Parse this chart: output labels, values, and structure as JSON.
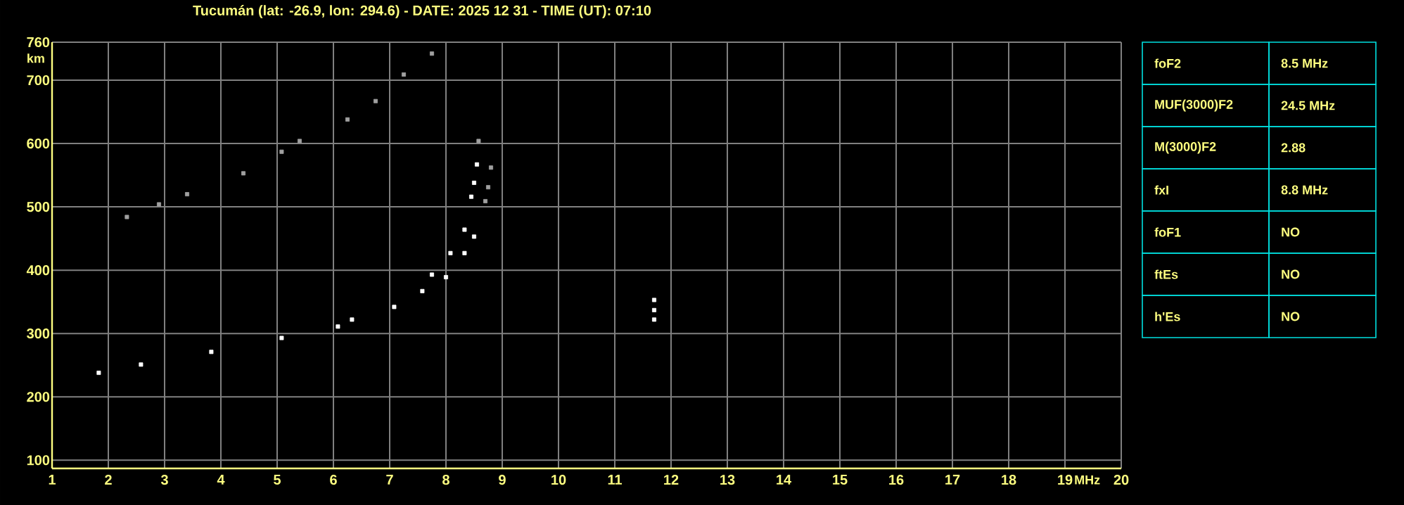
{
  "chart_data": {
    "type": "scatter",
    "title": "Tucumán (lat: -26.9, lon: 294.6) - DATE: 2025 12 31 - TIME (UT): 07:10",
    "xlabel": "MHz",
    "ylabel": "km",
    "xlim": [
      1,
      20
    ],
    "xticks": [
      1,
      2,
      3,
      4,
      5,
      6,
      7,
      8,
      9,
      10,
      11,
      12,
      13,
      14,
      15,
      16,
      17,
      18,
      19,
      20
    ],
    "ylim": [
      87,
      760
    ],
    "yticks": [
      100,
      200,
      300,
      400,
      500,
      600,
      700,
      760
    ],
    "grid": true,
    "marker": "square",
    "series": [
      {
        "color": "#ffffff",
        "x": [
          1.83,
          2.58,
          3.83,
          5.08,
          6.08,
          6.33,
          7.08,
          7.58,
          8.0,
          8.33,
          8.5
        ],
        "values": [
          238,
          251,
          271,
          293,
          311,
          322,
          342,
          367,
          389,
          427,
          453
        ]
      },
      {
        "color": "#ffffff",
        "x": [
          7.75,
          8.08,
          8.33,
          8.45,
          8.5,
          8.55
        ],
        "values": [
          393,
          427,
          464,
          516,
          538,
          567
        ]
      },
      {
        "color": "#a0a0a0",
        "x": [
          8.58,
          8.7,
          8.75,
          8.8
        ],
        "values": [
          604,
          509,
          531,
          562
        ]
      },
      {
        "color": "#a0a0a0",
        "x": [
          2.33,
          2.9,
          3.4,
          4.4,
          5.08,
          5.4,
          6.25,
          6.75,
          7.25,
          7.75
        ],
        "values": [
          484,
          504,
          520,
          553,
          587,
          604,
          638,
          667,
          709,
          742
        ]
      },
      {
        "color": "#ffffff",
        "x": [
          11.7,
          11.7,
          11.7
        ],
        "values": [
          322,
          337,
          353
        ]
      }
    ],
    "annotations": [
      "foF2",
      "8.5 MHz",
      "MUF(3000)F2",
      "24.5 MHz",
      "M(3000)F2",
      "2.88",
      "fxI",
      "8.8 MHz",
      "foF1",
      "NO",
      "ftEs",
      "NO",
      "h'Es",
      "NO"
    ]
  }
}
